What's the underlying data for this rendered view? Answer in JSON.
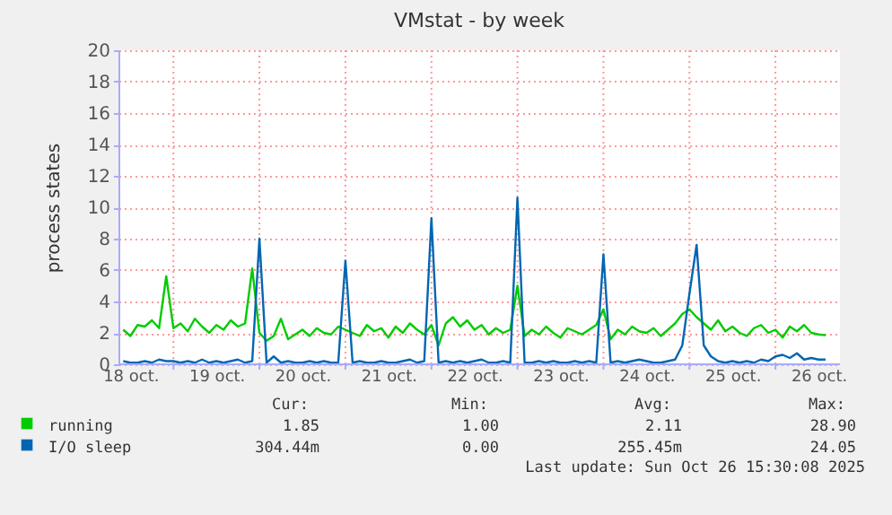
{
  "chart_data": {
    "type": "line",
    "title": "VMstat - by week",
    "ylabel": "process states",
    "x": [
      "2025-10-18T10:00",
      "2025-10-18T12:00",
      "2025-10-18T14:00",
      "2025-10-18T16:00",
      "2025-10-18T18:00",
      "2025-10-18T20:00",
      "2025-10-18T22:00",
      "2025-10-19T00:00",
      "2025-10-19T02:00",
      "2025-10-19T04:00",
      "2025-10-19T06:00",
      "2025-10-19T08:00",
      "2025-10-19T10:00",
      "2025-10-19T12:00",
      "2025-10-19T14:00",
      "2025-10-19T16:00",
      "2025-10-19T18:00",
      "2025-10-19T20:00",
      "2025-10-19T22:00",
      "2025-10-20T00:00",
      "2025-10-20T02:00",
      "2025-10-20T04:00",
      "2025-10-20T06:00",
      "2025-10-20T08:00",
      "2025-10-20T10:00",
      "2025-10-20T12:00",
      "2025-10-20T14:00",
      "2025-10-20T16:00",
      "2025-10-20T18:00",
      "2025-10-20T20:00",
      "2025-10-20T22:00",
      "2025-10-21T00:00",
      "2025-10-21T02:00",
      "2025-10-21T04:00",
      "2025-10-21T06:00",
      "2025-10-21T08:00",
      "2025-10-21T10:00",
      "2025-10-21T12:00",
      "2025-10-21T14:00",
      "2025-10-21T16:00",
      "2025-10-21T18:00",
      "2025-10-21T20:00",
      "2025-10-21T22:00",
      "2025-10-22T00:00",
      "2025-10-22T02:00",
      "2025-10-22T04:00",
      "2025-10-22T06:00",
      "2025-10-22T08:00",
      "2025-10-22T10:00",
      "2025-10-22T12:00",
      "2025-10-22T14:00",
      "2025-10-22T16:00",
      "2025-10-22T18:00",
      "2025-10-22T20:00",
      "2025-10-22T22:00",
      "2025-10-23T00:00",
      "2025-10-23T02:00",
      "2025-10-23T04:00",
      "2025-10-23T06:00",
      "2025-10-23T08:00",
      "2025-10-23T10:00",
      "2025-10-23T12:00",
      "2025-10-23T14:00",
      "2025-10-23T16:00",
      "2025-10-23T18:00",
      "2025-10-23T20:00",
      "2025-10-23T22:00",
      "2025-10-24T00:00",
      "2025-10-24T02:00",
      "2025-10-24T04:00",
      "2025-10-24T06:00",
      "2025-10-24T08:00",
      "2025-10-24T10:00",
      "2025-10-24T12:00",
      "2025-10-24T14:00",
      "2025-10-24T16:00",
      "2025-10-24T18:00",
      "2025-10-24T20:00",
      "2025-10-24T22:00",
      "2025-10-25T00:00",
      "2025-10-25T02:00",
      "2025-10-25T04:00",
      "2025-10-25T06:00",
      "2025-10-25T08:00",
      "2025-10-25T10:00",
      "2025-10-25T12:00",
      "2025-10-25T14:00",
      "2025-10-25T16:00",
      "2025-10-25T18:00",
      "2025-10-25T20:00",
      "2025-10-25T22:00",
      "2025-10-26T00:00",
      "2025-10-26T02:00",
      "2025-10-26T04:00",
      "2025-10-26T06:00",
      "2025-10-26T08:00",
      "2025-10-26T10:00",
      "2025-10-26T12:00",
      "2025-10-26T14:00"
    ],
    "series": [
      {
        "name": "running",
        "color": "#00cc00",
        "values": [
          2.2,
          1.8,
          2.5,
          2.4,
          2.8,
          2.3,
          5.6,
          2.3,
          2.6,
          2.1,
          2.9,
          2.4,
          2.0,
          2.5,
          2.2,
          2.8,
          2.4,
          2.6,
          6.1,
          2.0,
          1.5,
          1.8,
          2.9,
          1.6,
          1.9,
          2.2,
          1.8,
          2.3,
          2.0,
          1.9,
          2.4,
          2.2,
          2.0,
          1.8,
          2.5,
          2.1,
          2.3,
          1.7,
          2.4,
          2.0,
          2.6,
          2.2,
          1.9,
          2.5,
          1.2,
          2.6,
          3.0,
          2.4,
          2.8,
          2.2,
          2.5,
          1.9,
          2.3,
          2.0,
          2.2,
          5.0,
          1.8,
          2.2,
          1.9,
          2.4,
          2.0,
          1.7,
          2.3,
          2.1,
          1.9,
          2.2,
          2.5,
          3.5,
          1.6,
          2.2,
          1.9,
          2.4,
          2.1,
          2.0,
          2.3,
          1.8,
          2.2,
          2.6,
          3.2,
          3.5,
          3.0,
          2.6,
          2.2,
          2.8,
          2.1,
          2.4,
          2.0,
          1.8,
          2.3,
          2.5,
          2.0,
          2.2,
          1.7,
          2.4,
          2.1,
          2.5,
          2.0,
          1.9,
          1.85
        ]
      },
      {
        "name": "I/O sleep",
        "color": "#0066b3",
        "values": [
          0.2,
          0.1,
          0.1,
          0.2,
          0.1,
          0.3,
          0.2,
          0.2,
          0.1,
          0.2,
          0.1,
          0.3,
          0.1,
          0.2,
          0.1,
          0.2,
          0.3,
          0.1,
          0.2,
          8.0,
          0.1,
          0.5,
          0.1,
          0.2,
          0.1,
          0.1,
          0.2,
          0.1,
          0.2,
          0.1,
          0.1,
          6.6,
          0.1,
          0.2,
          0.1,
          0.1,
          0.2,
          0.1,
          0.1,
          0.2,
          0.3,
          0.1,
          0.2,
          9.3,
          0.1,
          0.2,
          0.1,
          0.2,
          0.1,
          0.2,
          0.3,
          0.1,
          0.1,
          0.2,
          0.1,
          10.6,
          0.1,
          0.1,
          0.2,
          0.1,
          0.2,
          0.1,
          0.1,
          0.2,
          0.1,
          0.2,
          0.1,
          7.0,
          0.1,
          0.2,
          0.1,
          0.2,
          0.3,
          0.2,
          0.1,
          0.1,
          0.2,
          0.3,
          1.2,
          4.5,
          7.6,
          1.2,
          0.5,
          0.2,
          0.1,
          0.2,
          0.1,
          0.2,
          0.1,
          0.3,
          0.2,
          0.5,
          0.6,
          0.4,
          0.7,
          0.3,
          0.4,
          0.3,
          0.3
        ]
      }
    ],
    "xlim": [
      "2025-10-18T08:40",
      "2025-10-26T18:00"
    ],
    "xticks": [
      {
        "value": "2025-10-18T12:00",
        "label": "18 oct."
      },
      {
        "value": "2025-10-19T00:00",
        "label": null
      },
      {
        "value": "2025-10-19T12:00",
        "label": "19 oct."
      },
      {
        "value": "2025-10-20T00:00",
        "label": null
      },
      {
        "value": "2025-10-20T12:00",
        "label": "20 oct."
      },
      {
        "value": "2025-10-21T00:00",
        "label": null
      },
      {
        "value": "2025-10-21T12:00",
        "label": "21 oct."
      },
      {
        "value": "2025-10-22T00:00",
        "label": null
      },
      {
        "value": "2025-10-22T12:00",
        "label": "22 oct."
      },
      {
        "value": "2025-10-23T00:00",
        "label": null
      },
      {
        "value": "2025-10-23T12:00",
        "label": "23 oct."
      },
      {
        "value": "2025-10-24T00:00",
        "label": null
      },
      {
        "value": "2025-10-24T12:00",
        "label": "24 oct."
      },
      {
        "value": "2025-10-25T00:00",
        "label": null
      },
      {
        "value": "2025-10-25T12:00",
        "label": "25 oct."
      },
      {
        "value": "2025-10-26T00:00",
        "label": null
      },
      {
        "value": "2025-10-26T12:00",
        "label": "26 oct."
      }
    ],
    "ylim": [
      0,
      20
    ],
    "yticks": [
      0,
      2,
      4,
      6,
      8,
      10,
      12,
      14,
      16,
      18,
      20
    ],
    "grid": true,
    "legend": "bottom left",
    "marker": "none",
    "line_style": "solid",
    "annotations": [
      "Cur:",
      "Min:",
      "Avg:",
      "Max:",
      "1.85",
      "1.00",
      "2.11",
      "28.90",
      "304.44m",
      "0.00",
      "255.45m",
      "24.05",
      "Last update: Sun Oct 26 15:30:08 2025"
    ]
  }
}
